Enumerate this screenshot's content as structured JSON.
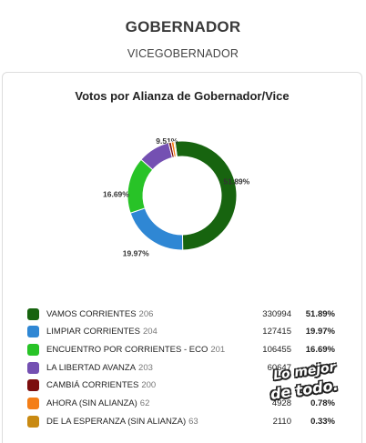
{
  "tabs": {
    "primary": "GOBERNADOR",
    "secondary": "VICEGOBERNADOR"
  },
  "chart_data": {
    "type": "pie",
    "title": "Votos por Alianza de Gobernador/Vice",
    "series": [
      {
        "name": "VAMOS CORRIENTES",
        "number": "206",
        "votes": "330994",
        "percent": "51.89%",
        "value": 51.89,
        "color": "#17640f",
        "show_label": true
      },
      {
        "name": "LIMPIAR CORRIENTES",
        "number": "204",
        "votes": "127415",
        "percent": "19.97%",
        "value": 19.97,
        "color": "#2f87d4",
        "show_label": true
      },
      {
        "name": "ENCUENTRO POR CORRIENTES - ECO",
        "number": "201",
        "votes": "106455",
        "percent": "16.69%",
        "value": 16.69,
        "color": "#28c327",
        "show_label": true
      },
      {
        "name": "LA LIBERTAD AVANZA",
        "number": "203",
        "votes": "60647",
        "percent": "9.51%",
        "value": 9.51,
        "color": "#7450b2",
        "show_label": true
      },
      {
        "name": "CAMBIÁ CORRIENTES",
        "number": "200",
        "votes": "",
        "percent": "",
        "value": 0.8,
        "color": "#7c0e0e",
        "show_label": false
      },
      {
        "name": "AHORA (SIN ALIANZA)",
        "number": "62",
        "votes": "4928",
        "percent": "0.78%",
        "value": 0.78,
        "color": "#f47e17",
        "show_label": false
      },
      {
        "name": "DE LA ESPERANZA (SIN ALIANZA)",
        "number": "63",
        "votes": "2110",
        "percent": "0.33%",
        "value": 0.33,
        "color": "#c98a12",
        "show_label": false
      }
    ]
  },
  "watermark": {
    "line1": "Lo mejor",
    "line2": "de todo."
  }
}
